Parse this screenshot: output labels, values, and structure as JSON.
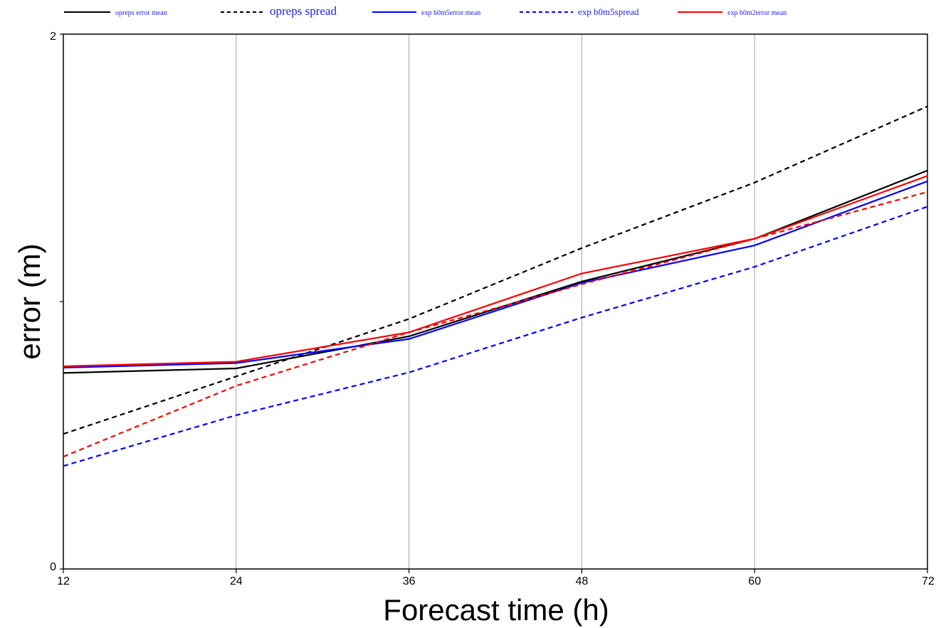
{
  "chart_data": {
    "type": "line",
    "title": "",
    "xlabel": "Forecast time (h)",
    "ylabel": "error (m)",
    "x": [
      12,
      24,
      36,
      48,
      60,
      72
    ],
    "xticks": [
      "12",
      "24",
      "36",
      "48",
      "60",
      "72"
    ],
    "yticks": [
      "0",
      "2"
    ],
    "xlim": [
      12,
      72
    ],
    "ylim": [
      0,
      2
    ],
    "grid": "vertical",
    "legend_position": "top",
    "series": [
      {
        "name": "opreps error mean",
        "color": "#000000",
        "style": "solid",
        "values": [
          0.733,
          0.75,
          0.87,
          1.075,
          1.235,
          1.49
        ]
      },
      {
        "name": "opreps spread",
        "color": "#000000",
        "style": "dashed",
        "values": [
          0.505,
          0.72,
          0.935,
          1.2,
          1.445,
          1.73
        ]
      },
      {
        "name": "exp b0m5error mean",
        "color": "#0000ff",
        "style": "solid",
        "values": [
          0.753,
          0.77,
          0.86,
          1.07,
          1.21,
          1.45
        ]
      },
      {
        "name": "exp b0m5spread",
        "color": "#0000ff",
        "style": "dashed",
        "values": [
          0.385,
          0.575,
          0.735,
          0.94,
          1.13,
          1.355
        ]
      },
      {
        "name": "exp b0m2error mean",
        "color": "#ff0000",
        "style": "solid",
        "values": [
          0.758,
          0.775,
          0.885,
          1.105,
          1.235,
          1.47
        ]
      },
      {
        "name": "",
        "color": "#ff0000",
        "style": "dashed",
        "values": [
          0.42,
          0.685,
          0.885,
          1.065,
          1.235,
          1.41
        ]
      }
    ]
  }
}
